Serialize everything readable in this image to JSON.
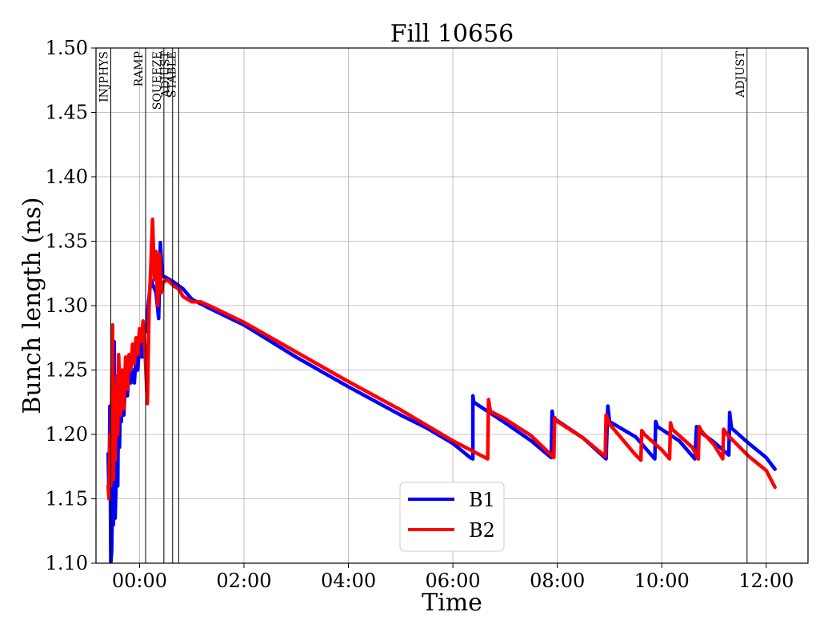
{
  "chart_data": {
    "type": "line",
    "title": "Fill 10656",
    "xlabel": "Time",
    "ylabel": "Bunch length (ns)",
    "xlim": [
      "-00:50",
      "12:48"
    ],
    "ylim": [
      1.1,
      1.5
    ],
    "x_ticks": [
      "00:00",
      "02:00",
      "04:00",
      "06:00",
      "08:00",
      "10:00",
      "12:00"
    ],
    "y_ticks": [
      "1.10",
      "1.15",
      "1.20",
      "1.25",
      "1.30",
      "1.35",
      "1.40",
      "1.45",
      "1.50"
    ],
    "grid": true,
    "legend_position": "lower-center",
    "events": [
      {
        "label": "INJPHYS",
        "time": "-00:33"
      },
      {
        "label": "RAMP",
        "time": "00:07"
      },
      {
        "label": "SQUEEZE",
        "time": "00:28"
      },
      {
        "label": "ADJUST",
        "time": "00:38"
      },
      {
        "label": "STABLE",
        "time": "00:45"
      },
      {
        "label": "ADJUST",
        "time": "11:38"
      }
    ],
    "series": [
      {
        "name": "B1",
        "color": "#0000ff",
        "points": [
          [
            "-00:36",
            1.185
          ],
          [
            "-00:35",
            1.15
          ],
          [
            "-00:34",
            1.222
          ],
          [
            "-00:33",
            1.1
          ],
          [
            "-00:32",
            1.11
          ],
          [
            "-00:31",
            1.15
          ],
          [
            "-00:30",
            1.13
          ],
          [
            "-00:29",
            1.272
          ],
          [
            "-00:28",
            1.135
          ],
          [
            "-00:27",
            1.16
          ],
          [
            "-00:26",
            1.2
          ],
          [
            "-00:25",
            1.16
          ],
          [
            "-00:24",
            1.25
          ],
          [
            "-00:23",
            1.19
          ],
          [
            "-00:22",
            1.232
          ],
          [
            "-00:21",
            1.21
          ],
          [
            "-00:20",
            1.238
          ],
          [
            "-00:18",
            1.215
          ],
          [
            "-00:16",
            1.245
          ],
          [
            "-00:14",
            1.23
          ],
          [
            "-00:12",
            1.25
          ],
          [
            "-00:10",
            1.24
          ],
          [
            "-00:08",
            1.25
          ],
          [
            "-00:06",
            1.24
          ],
          [
            "-00:04",
            1.26
          ],
          [
            "-00:02",
            1.25
          ],
          [
            "00:00",
            1.27
          ],
          [
            "00:03",
            1.26
          ],
          [
            "00:05",
            1.28
          ],
          [
            "00:08",
            1.28
          ],
          [
            "00:10",
            1.3
          ],
          [
            "00:13",
            1.32
          ],
          [
            "00:16",
            1.315
          ],
          [
            "00:19",
            1.31
          ],
          [
            "00:22",
            1.29
          ],
          [
            "00:24",
            1.349
          ],
          [
            "00:26",
            1.323
          ],
          [
            "00:30",
            1.322
          ],
          [
            "00:40",
            1.318
          ],
          [
            "00:50",
            1.313
          ],
          [
            "01:00",
            1.305
          ],
          [
            "01:20",
            1.298
          ],
          [
            "02:00",
            1.285
          ],
          [
            "03:00",
            1.26
          ],
          [
            "04:00",
            1.237
          ],
          [
            "05:00",
            1.215
          ],
          [
            "05:30",
            1.205
          ],
          [
            "06:00",
            1.193
          ],
          [
            "06:20",
            1.182
          ],
          [
            "06:23",
            1.181
          ],
          [
            "06:23",
            1.23
          ],
          [
            "06:24",
            1.225
          ],
          [
            "07:00",
            1.209
          ],
          [
            "07:30",
            1.195
          ],
          [
            "07:53",
            1.182
          ],
          [
            "07:54",
            1.218
          ],
          [
            "07:55",
            1.213
          ],
          [
            "08:30",
            1.197
          ],
          [
            "08:56",
            1.181
          ],
          [
            "08:58",
            1.222
          ],
          [
            "09:00",
            1.21
          ],
          [
            "09:30",
            1.198
          ],
          [
            "09:52",
            1.181
          ],
          [
            "09:53",
            1.21
          ],
          [
            "09:55",
            1.206
          ],
          [
            "10:20",
            1.195
          ],
          [
            "10:38",
            1.181
          ],
          [
            "10:40",
            1.206
          ],
          [
            "10:42",
            1.203
          ],
          [
            "11:00",
            1.194
          ],
          [
            "11:17",
            1.184
          ],
          [
            "11:18",
            1.217
          ],
          [
            "11:20",
            1.205
          ],
          [
            "11:40",
            1.193
          ],
          [
            "12:00",
            1.182
          ],
          [
            "12:10",
            1.173
          ]
        ]
      },
      {
        "name": "B2",
        "color": "#ff0000",
        "points": [
          [
            "-00:36",
            1.16
          ],
          [
            "-00:35",
            1.15
          ],
          [
            "-00:34",
            1.2
          ],
          [
            "-00:33",
            1.16
          ],
          [
            "-00:32",
            1.22
          ],
          [
            "-00:31",
            1.285
          ],
          [
            "-00:30",
            1.165
          ],
          [
            "-00:29",
            1.23
          ],
          [
            "-00:28",
            1.18
          ],
          [
            "-00:26",
            1.245
          ],
          [
            "-00:25",
            1.2
          ],
          [
            "-00:24",
            1.262
          ],
          [
            "-00:22",
            1.215
          ],
          [
            "-00:20",
            1.25
          ],
          [
            "-00:18",
            1.22
          ],
          [
            "-00:16",
            1.26
          ],
          [
            "-00:14",
            1.235
          ],
          [
            "-00:12",
            1.262
          ],
          [
            "-00:10",
            1.25
          ],
          [
            "-00:08",
            1.27
          ],
          [
            "-00:06",
            1.255
          ],
          [
            "-00:04",
            1.275
          ],
          [
            "-00:02",
            1.262
          ],
          [
            "00:00",
            1.282
          ],
          [
            "00:02",
            1.272
          ],
          [
            "00:04",
            1.288
          ],
          [
            "00:06",
            1.27
          ],
          [
            "00:09",
            1.224
          ],
          [
            "00:11",
            1.3
          ],
          [
            "00:13",
            1.33
          ],
          [
            "00:15",
            1.367
          ],
          [
            "00:17",
            1.32
          ],
          [
            "00:19",
            1.342
          ],
          [
            "00:21",
            1.3
          ],
          [
            "00:23",
            1.34
          ],
          [
            "00:25",
            1.31
          ],
          [
            "00:27",
            1.318
          ],
          [
            "00:32",
            1.32
          ],
          [
            "00:40",
            1.315
          ],
          [
            "00:45",
            1.313
          ],
          [
            "00:50",
            1.307
          ],
          [
            "01:00",
            1.303
          ],
          [
            "01:10",
            1.303
          ],
          [
            "01:20",
            1.3
          ],
          [
            "02:00",
            1.287
          ],
          [
            "03:00",
            1.264
          ],
          [
            "04:00",
            1.241
          ],
          [
            "05:00",
            1.219
          ],
          [
            "06:00",
            1.195
          ],
          [
            "06:40",
            1.181
          ],
          [
            "06:41",
            1.227
          ],
          [
            "06:43",
            1.218
          ],
          [
            "07:00",
            1.212
          ],
          [
            "07:30",
            1.199
          ],
          [
            "07:56",
            1.182
          ],
          [
            "07:57",
            1.213
          ],
          [
            "07:58",
            1.211
          ],
          [
            "08:30",
            1.197
          ],
          [
            "08:55",
            1.183
          ],
          [
            "08:56",
            1.215
          ],
          [
            "09:00",
            1.208
          ],
          [
            "09:30",
            1.184
          ],
          [
            "09:36",
            1.18
          ],
          [
            "09:37",
            1.203
          ],
          [
            "09:40",
            1.2
          ],
          [
            "10:00",
            1.188
          ],
          [
            "10:09",
            1.181
          ],
          [
            "10:10",
            1.209
          ],
          [
            "10:12",
            1.204
          ],
          [
            "10:35",
            1.19
          ],
          [
            "10:42",
            1.181
          ],
          [
            "10:43",
            1.206
          ],
          [
            "10:45",
            1.203
          ],
          [
            "11:00",
            1.192
          ],
          [
            "11:10",
            1.181
          ],
          [
            "11:11",
            1.204
          ],
          [
            "11:15",
            1.2
          ],
          [
            "11:40",
            1.183
          ],
          [
            "12:00",
            1.172
          ],
          [
            "12:10",
            1.159
          ]
        ]
      }
    ]
  }
}
